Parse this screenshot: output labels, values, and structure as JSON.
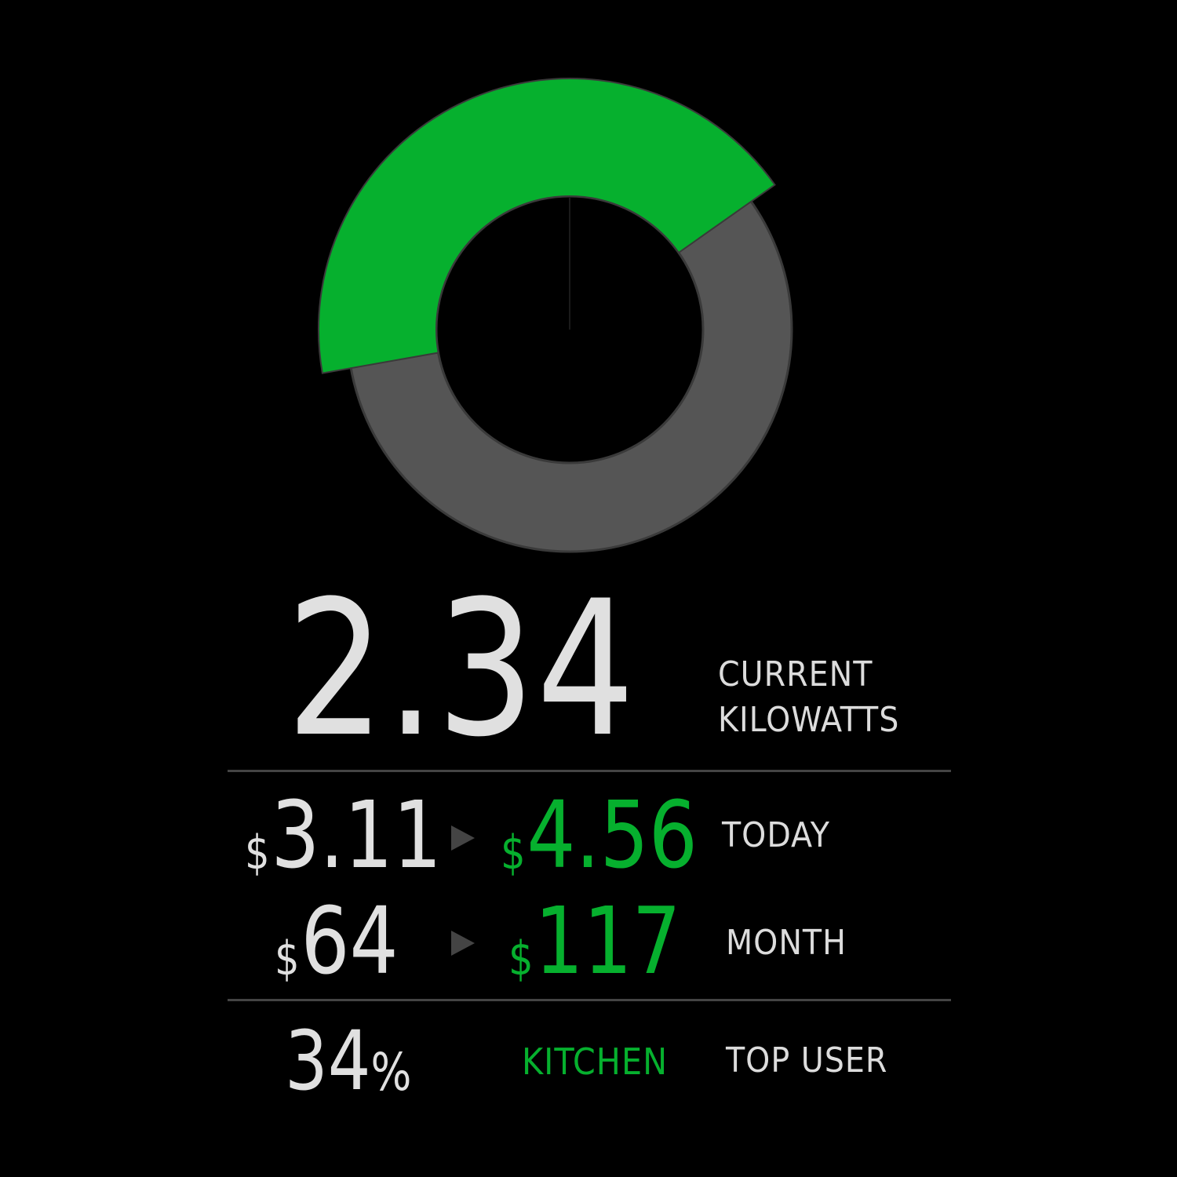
{
  "gauge": {
    "value_fraction": 0.43,
    "start_angle_deg": -105,
    "colors": {
      "fill": "#06b02e",
      "track": "#555555",
      "outline": "#3a3a3a",
      "background": "#000000"
    }
  },
  "current": {
    "value": "2.34",
    "label_line1": "CURRENT",
    "label_line2": "KILOWATTS"
  },
  "today": {
    "previous_currency": "$",
    "previous_value": "3.11",
    "current_currency": "$",
    "current_value": "4.56",
    "label": "TODAY"
  },
  "month": {
    "previous_currency": "$",
    "previous_value": "64",
    "current_currency": "$",
    "current_value": "117",
    "label": "MONTH"
  },
  "top_user": {
    "percent_value": "34",
    "percent_symbol": "%",
    "room": "KITCHEN",
    "label": "TOP USER"
  },
  "icons": {
    "transition_arrow": "triangle-right-icon"
  }
}
